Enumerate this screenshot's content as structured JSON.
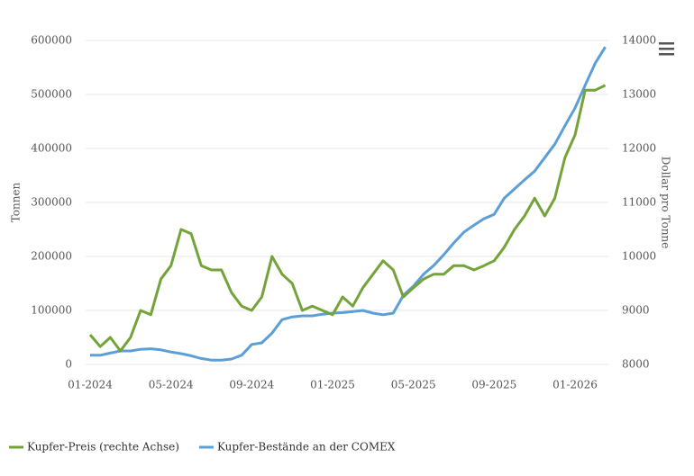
{
  "chart_data": {
    "type": "line",
    "categories": [
      "01-2024",
      null,
      null,
      null,
      null,
      null,
      null,
      null,
      "05-2024",
      null,
      null,
      null,
      null,
      null,
      null,
      null,
      "09-2024",
      null,
      null,
      null,
      null,
      null,
      null,
      null,
      "01-2025",
      null,
      null,
      null,
      null,
      null,
      null,
      null,
      "05-2025",
      null,
      null,
      null,
      null,
      null,
      null,
      null,
      "09-2025",
      null,
      null,
      null,
      null,
      null,
      null,
      null,
      "01-2026",
      null,
      null,
      null
    ],
    "ylabel": "Tonnen",
    "y2label": "Dollar pro Tonne",
    "ylim": [
      0,
      600000
    ],
    "yticks": [
      0,
      100000,
      200000,
      300000,
      400000,
      500000,
      600000
    ],
    "y2lim": [
      8000,
      14000
    ],
    "y2ticks": [
      8000,
      9000,
      10000,
      11000,
      12000,
      13000,
      14000
    ],
    "grid": true,
    "legend": "bottom-left",
    "series": [
      {
        "name": "Kupfer-Preis (rechte Achse)",
        "color": "#74a33a",
        "axis": "y2",
        "values": [
          8550,
          8330,
          8500,
          8250,
          8500,
          9000,
          8920,
          9580,
          9830,
          10500,
          10420,
          9830,
          9750,
          9750,
          9330,
          9080,
          9000,
          9250,
          10000,
          9670,
          9500,
          9000,
          9080,
          9000,
          8920,
          9250,
          9080,
          9420,
          9670,
          9920,
          9750,
          9250,
          9420,
          9580,
          9670,
          9670,
          9830,
          9830,
          9750,
          9830,
          9920,
          10170,
          10500,
          10750,
          11080,
          10750,
          11080,
          11830,
          12250,
          13080,
          13080,
          13170
        ]
      },
      {
        "name": "Kupfer-Bestände an der COMEX",
        "color": "#5b9fd6",
        "values": [
          17000,
          17000,
          21000,
          25000,
          25000,
          28000,
          29000,
          27000,
          23000,
          20000,
          16000,
          11000,
          8000,
          8000,
          10000,
          17000,
          37000,
          40000,
          58000,
          83000,
          88000,
          90000,
          90000,
          93000,
          95000,
          96000,
          98000,
          100000,
          95000,
          92000,
          95000,
          128000,
          145000,
          167000,
          183000,
          203000,
          225000,
          245000,
          258000,
          270000,
          278000,
          308000,
          325000,
          342000,
          358000,
          383000,
          408000,
          442000,
          475000,
          517000,
          558000,
          588000
        ]
      }
    ]
  }
}
